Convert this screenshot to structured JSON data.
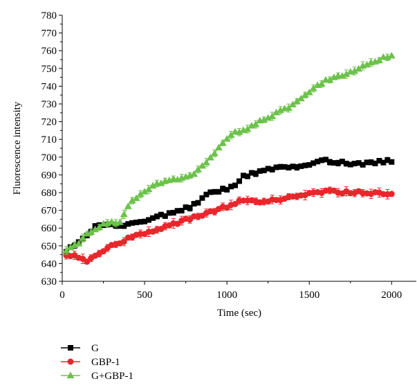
{
  "chart_data": {
    "type": "line",
    "title": "",
    "xlabel": "Time (sec)",
    "ylabel": "Fluorescence intensity",
    "xlim": [
      0,
      2150
    ],
    "ylim": [
      630,
      780
    ],
    "xticks": [
      0,
      500,
      1000,
      1500,
      2000
    ],
    "yticks": [
      630,
      640,
      650,
      660,
      670,
      680,
      690,
      700,
      710,
      720,
      730,
      740,
      750,
      760,
      770,
      780
    ],
    "xtick_labels": [
      "0",
      "500",
      "1000",
      "1500",
      "2000"
    ],
    "ytick_labels": [
      "630",
      "640",
      "650",
      "660",
      "670",
      "680",
      "690",
      "700",
      "710",
      "720",
      "730",
      "740",
      "750",
      "760",
      "770",
      "780"
    ],
    "legend_position": "bottom-left",
    "grid": false,
    "series": [
      {
        "name": "G",
        "color": "#000000",
        "marker": "square",
        "anchors": [
          [
            25,
            647
          ],
          [
            100,
            652
          ],
          [
            150,
            656
          ],
          [
            200,
            661
          ],
          [
            250,
            662
          ],
          [
            300,
            662
          ],
          [
            350,
            661
          ],
          [
            400,
            662
          ],
          [
            500,
            664
          ],
          [
            600,
            667
          ],
          [
            700,
            669
          ],
          [
            800,
            673
          ],
          [
            900,
            680
          ],
          [
            1000,
            682
          ],
          [
            1050,
            684
          ],
          [
            1100,
            689
          ],
          [
            1200,
            692
          ],
          [
            1300,
            694
          ],
          [
            1400,
            695
          ],
          [
            1500,
            695
          ],
          [
            1550,
            698
          ],
          [
            1600,
            698
          ],
          [
            1700,
            697
          ],
          [
            1800,
            696
          ],
          [
            1900,
            697
          ],
          [
            2000,
            698
          ]
        ],
        "error": 1.5
      },
      {
        "name": "GBP-1",
        "color": "#e8262b",
        "marker": "circle",
        "anchors": [
          [
            25,
            644
          ],
          [
            100,
            644
          ],
          [
            150,
            641
          ],
          [
            200,
            644
          ],
          [
            250,
            647
          ],
          [
            300,
            650
          ],
          [
            350,
            652
          ],
          [
            400,
            654
          ],
          [
            500,
            657
          ],
          [
            600,
            660
          ],
          [
            700,
            663
          ],
          [
            800,
            666
          ],
          [
            900,
            669
          ],
          [
            1000,
            672
          ],
          [
            1100,
            676
          ],
          [
            1200,
            675
          ],
          [
            1300,
            676
          ],
          [
            1400,
            678
          ],
          [
            1500,
            679
          ],
          [
            1600,
            681
          ],
          [
            1700,
            680
          ],
          [
            1800,
            680
          ],
          [
            1900,
            680
          ],
          [
            2000,
            679
          ]
        ],
        "error": 2.5
      },
      {
        "name": "G+GBP-1",
        "color": "#6cc24a",
        "marker": "triangle",
        "anchors": [
          [
            25,
            648
          ],
          [
            100,
            652
          ],
          [
            150,
            656
          ],
          [
            200,
            660
          ],
          [
            300,
            664
          ],
          [
            350,
            663
          ],
          [
            400,
            673
          ],
          [
            450,
            677
          ],
          [
            500,
            681
          ],
          [
            600,
            686
          ],
          [
            700,
            688
          ],
          [
            800,
            690
          ],
          [
            900,
            700
          ],
          [
            1000,
            710
          ],
          [
            1050,
            714
          ],
          [
            1100,
            715
          ],
          [
            1200,
            720
          ],
          [
            1300,
            725
          ],
          [
            1400,
            729
          ],
          [
            1500,
            737
          ],
          [
            1600,
            743
          ],
          [
            1700,
            746
          ],
          [
            1800,
            750
          ],
          [
            1900,
            754
          ],
          [
            2000,
            758
          ]
        ],
        "error": 2.2
      }
    ]
  }
}
